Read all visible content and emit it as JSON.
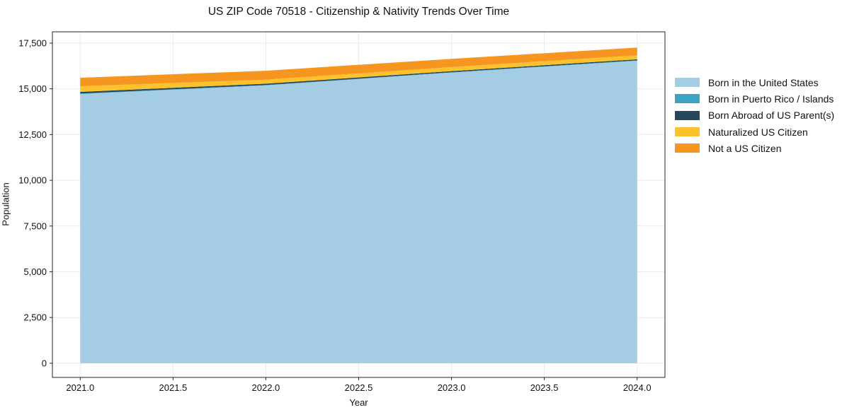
{
  "figure": {
    "title": "US ZIP Code 70518 - Citizenship & Nativity Trends Over Time"
  },
  "chart_data": {
    "type": "area",
    "stacked": true,
    "title": "US ZIP Code 70518 - Citizenship & Nativity Trends Over Time",
    "xlabel": "Year",
    "ylabel": "Population",
    "x": [
      2021,
      2022,
      2023,
      2024
    ],
    "series": [
      {
        "name": "Born in the United States",
        "color": "#a4cce3",
        "values": [
          14720,
          15190,
          15890,
          16540
        ]
      },
      {
        "name": "Born in Puerto Rico / Islands",
        "color": "#3da3c2",
        "values": [
          25,
          20,
          20,
          20
        ]
      },
      {
        "name": "Born Abroad of US Parent(s)",
        "color": "#27485a",
        "values": [
          90,
          75,
          60,
          55
        ]
      },
      {
        "name": "Naturalized US Citizen",
        "color": "#fcc22d",
        "values": [
          310,
          215,
          220,
          220
        ]
      },
      {
        "name": "Not a US Citizen",
        "color": "#f79521",
        "values": [
          465,
          490,
          450,
          425
        ]
      }
    ],
    "totals": [
      15610,
      15990,
      16640,
      17260
    ],
    "xticks": {
      "values": [
        2021.0,
        2021.5,
        2022.0,
        2022.5,
        2023.0,
        2023.5,
        2024.0
      ],
      "labels": [
        "2021.0",
        "2021.5",
        "2022.0",
        "2022.5",
        "2023.0",
        "2023.5",
        "2024.0"
      ]
    },
    "yticks": {
      "values": [
        0,
        2500,
        5000,
        7500,
        10000,
        12500,
        15000,
        17500
      ],
      "labels": [
        "0",
        "2,500",
        "5,000",
        "7,500",
        "10,000",
        "12,500",
        "15,000",
        "17,500"
      ]
    },
    "xlim": [
      2020.85,
      2024.15
    ],
    "ylim": [
      -775,
      18120
    ],
    "grid": true,
    "legend_position": "outside-right",
    "colors": {
      "grid": "#ebebeb",
      "spine": "#262626",
      "tick": "#262626",
      "text": "#111111",
      "background": "#ffffff"
    }
  }
}
